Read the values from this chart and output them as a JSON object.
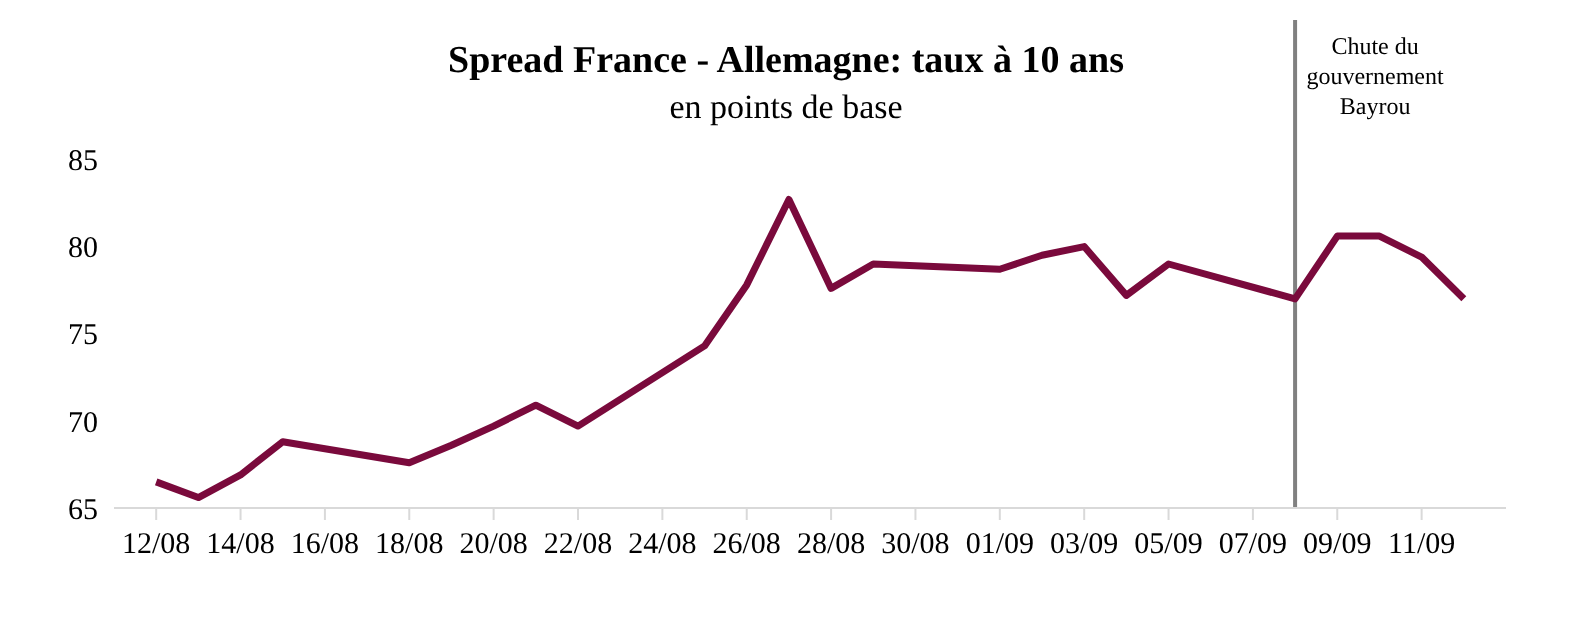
{
  "chart_data": {
    "type": "line",
    "title": "Spread France - Allemagne: taux à 10 ans",
    "subtitle": "en points de base",
    "x": [
      "--08-12",
      "--08-13",
      "--08-14",
      "--08-15",
      "--08-18",
      "--08-19",
      "--08-20",
      "--08-21",
      "--08-22",
      "--08-25",
      "--08-26",
      "--08-27",
      "--08-28",
      "--08-29",
      "--09-01",
      "--09-02",
      "--09-03",
      "--09-04",
      "--09-05",
      "--09-08",
      "--09-09",
      "--09-10",
      "--09-11",
      "--09-12"
    ],
    "series": [
      {
        "color": "#7a0a3c",
        "values": [
          66.5,
          65.6,
          66.9,
          68.8,
          67.6,
          68.6,
          69.7,
          70.9,
          69.7,
          74.3,
          77.8,
          82.7,
          77.6,
          79.0,
          78.7,
          79.5,
          80.0,
          77.2,
          79.0,
          77.0,
          80.6,
          80.6,
          79.4,
          77.0
        ]
      }
    ],
    "xlim": [
      "--08-11",
      "--09-13"
    ],
    "xticks": [
      {
        "value": "--08-12",
        "label": "12/08"
      },
      {
        "value": "--08-14",
        "label": "14/08"
      },
      {
        "value": "--08-16",
        "label": "16/08"
      },
      {
        "value": "--08-18",
        "label": "18/08"
      },
      {
        "value": "--08-20",
        "label": "20/08"
      },
      {
        "value": "--08-22",
        "label": "22/08"
      },
      {
        "value": "--08-24",
        "label": "24/08"
      },
      {
        "value": "--08-26",
        "label": "26/08"
      },
      {
        "value": "--08-28",
        "label": "28/08"
      },
      {
        "value": "--08-30",
        "label": "30/08"
      },
      {
        "value": "--09-01",
        "label": "01/09"
      },
      {
        "value": "--09-03",
        "label": "03/09"
      },
      {
        "value": "--09-05",
        "label": "05/09"
      },
      {
        "value": "--09-07",
        "label": "07/09"
      },
      {
        "value": "--09-09",
        "label": "09/09"
      },
      {
        "value": "--09-11",
        "label": "11/09"
      }
    ],
    "ylim": [
      65,
      93
    ],
    "yticks": [
      65,
      70,
      75,
      80,
      85
    ],
    "ref_lines": [
      {
        "axis": "x",
        "value": "--09-08",
        "label": "Chute du gouvernement Bayrou",
        "color": "#808080"
      }
    ],
    "grid": false,
    "legend": false,
    "marker": "none",
    "line_style": "solid"
  }
}
